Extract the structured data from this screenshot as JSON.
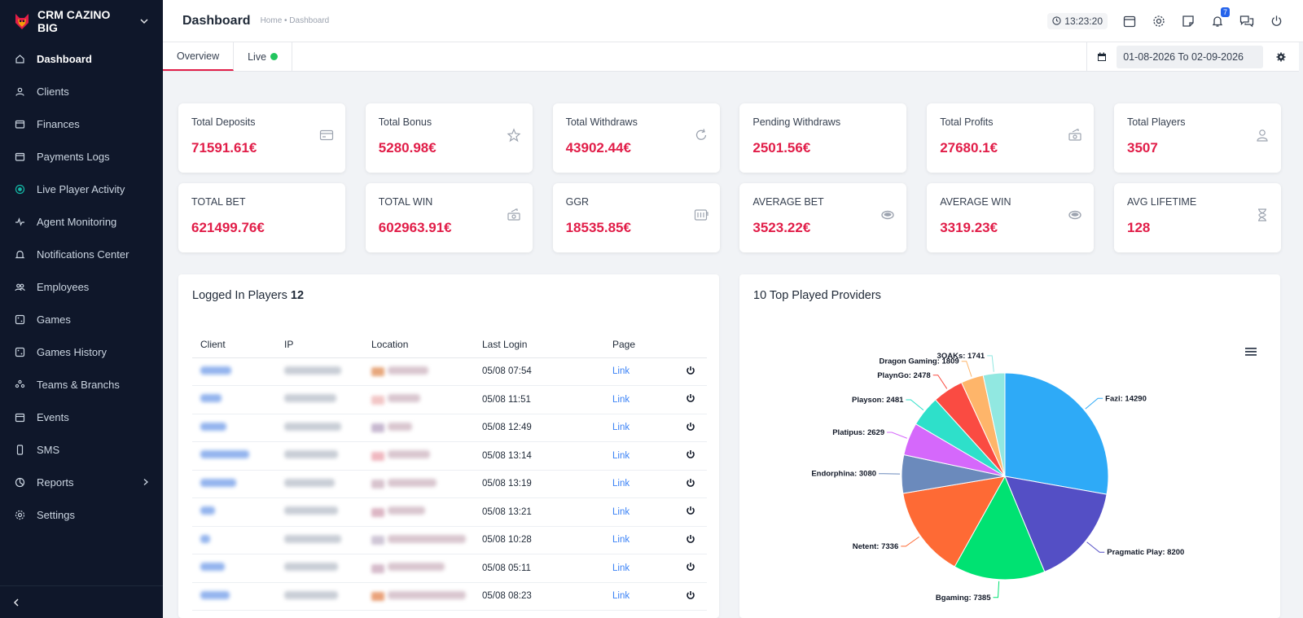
{
  "app": {
    "brand": "CRM CAZINO BIG"
  },
  "sidebar": {
    "items": [
      {
        "label": "Dashboard",
        "icon": "home-icon",
        "active": true
      },
      {
        "label": "Clients",
        "icon": "user-icon"
      },
      {
        "label": "Finances",
        "icon": "wallet-icon"
      },
      {
        "label": "Payments Logs",
        "icon": "wallet-icon"
      },
      {
        "label": "Live Player Activity",
        "icon": "live-dot-icon"
      },
      {
        "label": "Agent Monitoring",
        "icon": "pulse-icon"
      },
      {
        "label": "Notifications Center",
        "icon": "bell-icon"
      },
      {
        "label": "Employees",
        "icon": "users-icon"
      },
      {
        "label": "Games",
        "icon": "dice-icon"
      },
      {
        "label": "Games History",
        "icon": "dice-icon"
      },
      {
        "label": "Teams & Branchs",
        "icon": "team-icon"
      },
      {
        "label": "Events",
        "icon": "calendar-icon"
      },
      {
        "label": "SMS",
        "icon": "phone-icon"
      },
      {
        "label": "Reports",
        "icon": "chart-pie-icon",
        "has_children": true
      },
      {
        "label": "Settings",
        "icon": "gear-icon"
      }
    ]
  },
  "header": {
    "title": "Dashboard",
    "breadcrumb": "Home • Dashboard",
    "clock": "13:23:20",
    "notifications_count": "7"
  },
  "tabs": [
    {
      "label": "Overview",
      "active": true
    },
    {
      "label": "Live",
      "status": "online"
    }
  ],
  "date_range": "01-08-2026 To 02-09-2026",
  "stats": [
    {
      "label": "Total Deposits",
      "value": "71591.61€",
      "icon": "card-icon"
    },
    {
      "label": "Total Bonus",
      "value": "5280.98€",
      "icon": "star-icon"
    },
    {
      "label": "Total Withdraws",
      "value": "43902.44€",
      "icon": "refresh-icon"
    },
    {
      "label": "Pending Withdraws",
      "value": "2501.56€",
      "icon": "none"
    },
    {
      "label": "Total Profits",
      "value": "27680.1€",
      "icon": "money-icon"
    },
    {
      "label": "Total Players",
      "value": "3507",
      "icon": "user-icon"
    },
    {
      "label": "TOTAL BET",
      "value": "621499.76€",
      "icon": "none"
    },
    {
      "label": "TOTAL WIN",
      "value": "602963.91€",
      "icon": "money-icon"
    },
    {
      "label": "GGR",
      "value": "18535.85€",
      "icon": "slot-icon"
    },
    {
      "label": "AVERAGE BET",
      "value": "3523.22€",
      "icon": "coin-icon"
    },
    {
      "label": "AVERAGE WIN",
      "value": "3319.23€",
      "icon": "coin-icon"
    },
    {
      "label": "AVG LIFETIME",
      "value": "128",
      "icon": "hourglass-icon"
    }
  ],
  "logged_in": {
    "title": "Logged In Players",
    "count": "12",
    "columns": [
      "Client",
      "IP",
      "Location",
      "Last Login",
      "Page"
    ],
    "rows": [
      {
        "last_login": "05/08 07:54",
        "page": "Link"
      },
      {
        "last_login": "05/08 11:51",
        "page": "Link"
      },
      {
        "last_login": "05/08 12:49",
        "page": "Link"
      },
      {
        "last_login": "05/08 13:14",
        "page": "Link"
      },
      {
        "last_login": "05/08 13:19",
        "page": "Link"
      },
      {
        "last_login": "05/08 13:21",
        "page": "Link"
      },
      {
        "last_login": "05/08 10:28",
        "page": "Link"
      },
      {
        "last_login": "05/08 05:11",
        "page": "Link"
      },
      {
        "last_login": "05/08 08:23",
        "page": "Link"
      }
    ]
  },
  "providers": {
    "title": "10 Top Played Providers",
    "chart_data": {
      "type": "pie",
      "title": "",
      "slices": [
        {
          "name": "Fazi",
          "value": 14290,
          "color": "#2eaaf7"
        },
        {
          "name": "Pragmatic Play",
          "value": 8200,
          "color": "#544fc5"
        },
        {
          "name": "Bgaming",
          "value": 7385,
          "color": "#00e272"
        },
        {
          "name": "Netent",
          "value": 7336,
          "color": "#fe6a35"
        },
        {
          "name": "Endorphina",
          "value": 3080,
          "color": "#6b8abc"
        },
        {
          "name": "Platipus",
          "value": 2629,
          "color": "#d568fb"
        },
        {
          "name": "Playson",
          "value": 2481,
          "color": "#2ee0ca"
        },
        {
          "name": "PlaynGo",
          "value": 2478,
          "color": "#fa4b42"
        },
        {
          "name": "Dragon Gaming",
          "value": 1809,
          "color": "#feb56a"
        },
        {
          "name": "3OAKs",
          "value": 1741,
          "color": "#91e8e1"
        }
      ]
    }
  },
  "colors": {
    "sidebar_bg": "#0f172a",
    "accent_value": "#e11d48",
    "link": "#3b82f6",
    "live": "#22c55e"
  }
}
